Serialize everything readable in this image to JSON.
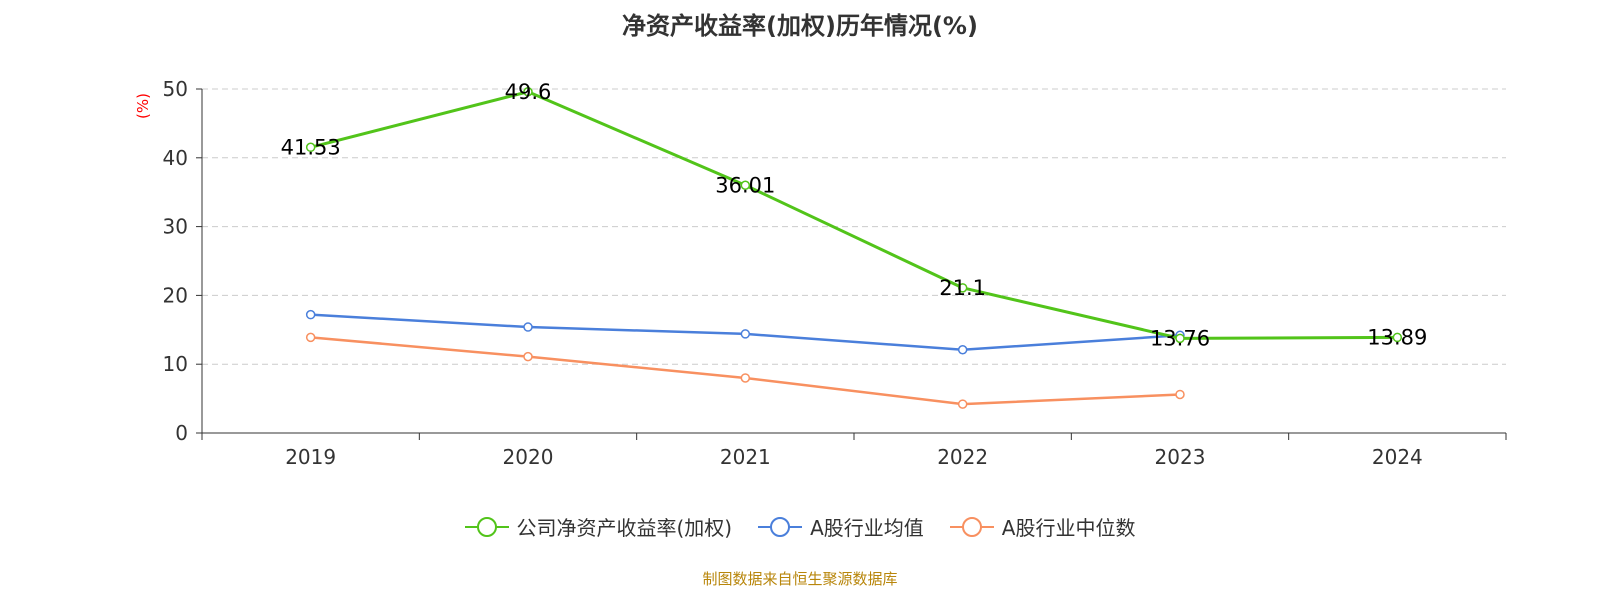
{
  "title": "净资产收益率(加权)历年情况(%)",
  "source": "制图数据来自恒生聚源数据库",
  "y_unit_label": "(%)",
  "colors": {
    "company": "#52c41a",
    "industry_avg": "#4a7fdb",
    "industry_median": "#f89060",
    "grid": "#cccccc",
    "axis": "#333333",
    "unit_label": "#ff0000"
  },
  "chart_data": {
    "type": "line",
    "x": [
      "2019",
      "2020",
      "2021",
      "2022",
      "2023",
      "2024"
    ],
    "ylim": [
      0,
      50
    ],
    "yticks": [
      0,
      10,
      20,
      30,
      40,
      50
    ],
    "grid": true,
    "legend_position": "bottom",
    "series": [
      {
        "name": "公司净资产收益率(加权)",
        "color_key": "company",
        "values": [
          41.53,
          49.6,
          36.01,
          21.1,
          13.76,
          13.89
        ],
        "labels": [
          "41.53",
          "49.6",
          "36.01",
          "21.1",
          "13.76",
          "13.89"
        ]
      },
      {
        "name": "A股行业均值",
        "color_key": "industry_avg",
        "values": [
          17.2,
          15.4,
          14.4,
          12.1,
          14.2,
          null
        ]
      },
      {
        "name": "A股行业中位数",
        "color_key": "industry_median",
        "values": [
          13.9,
          11.1,
          8.0,
          4.2,
          5.6,
          null
        ]
      }
    ]
  }
}
